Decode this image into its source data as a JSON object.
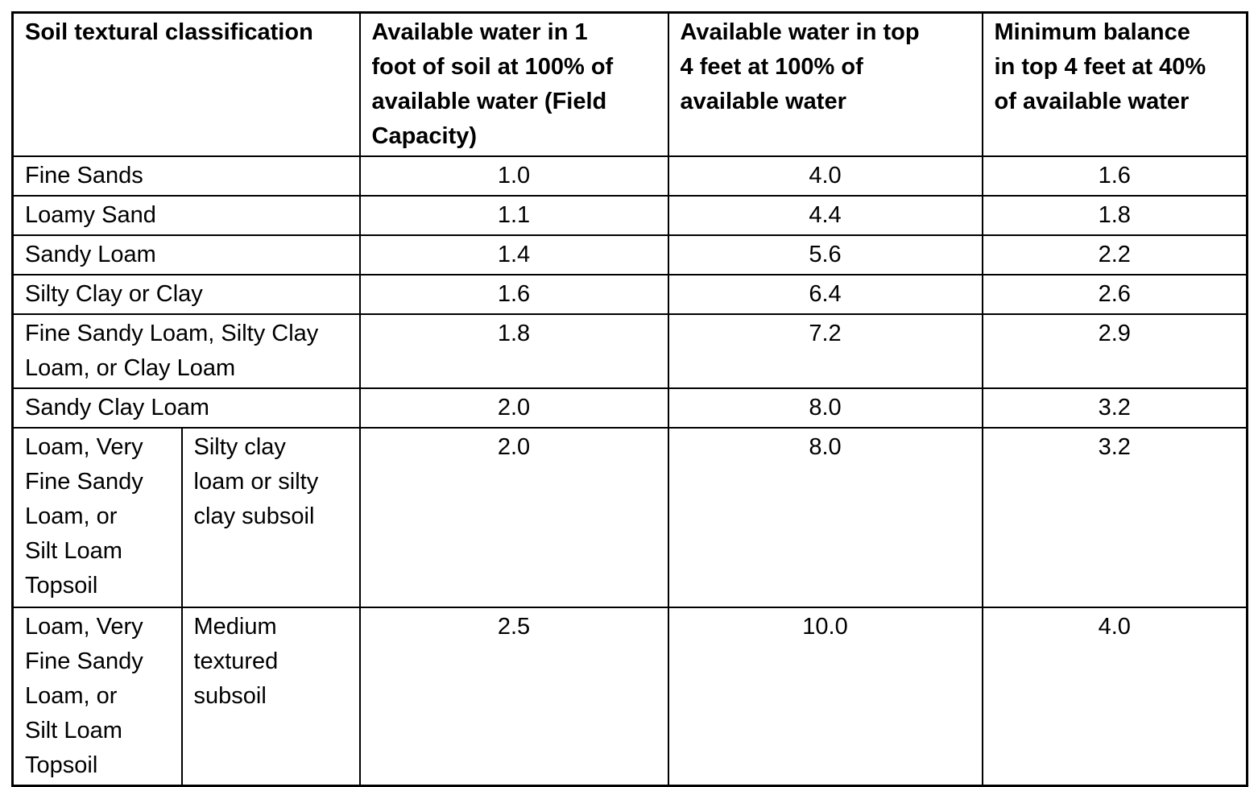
{
  "page": {
    "background_color": "#ffffff",
    "text_color": "#000000",
    "border_color": "#000000"
  },
  "table": {
    "col_headers": {
      "classification": "Soil textural classification",
      "water_1ft": "Available water in 1\nfoot of soil at 100% of\navailable water (Field\nCapacity)",
      "water_4ft": "Available water in top\n4 feet at 100% of\navailable water",
      "min_balance": "Minimum balance\nin top 4 feet at 40%\nof available water"
    },
    "rows": [
      {
        "classification": "Fine Sands",
        "water_1ft": "1.0",
        "water_4ft": "4.0",
        "min_balance": "1.6"
      },
      {
        "classification": "Loamy Sand",
        "water_1ft": "1.1",
        "water_4ft": "4.4",
        "min_balance": "1.8"
      },
      {
        "classification": "Sandy Loam",
        "water_1ft": "1.4",
        "water_4ft": "5.6",
        "min_balance": "2.2"
      },
      {
        "classification": "Silty Clay or Clay",
        "water_1ft": "1.6",
        "water_4ft": "6.4",
        "min_balance": "2.6"
      },
      {
        "classification": "Fine Sandy Loam, Silty Clay\nLoam, or Clay Loam",
        "water_1ft": "1.8",
        "water_4ft": "7.2",
        "min_balance": "2.9"
      },
      {
        "classification": "Sandy Clay Loam",
        "water_1ft": "2.0",
        "water_4ft": "8.0",
        "min_balance": "3.2"
      },
      {
        "topsoil": "Loam, Very\nFine Sandy\nLoam, or\nSilt Loam\nTopsoil",
        "subsoil": "Silty clay\nloam or silty\nclay subsoil",
        "water_1ft": "2.0",
        "water_4ft": "8.0",
        "min_balance": "3.2"
      },
      {
        "topsoil": "Loam, Very\nFine Sandy\nLoam, or\nSilt Loam\nTopsoil",
        "subsoil": "Medium\ntextured\nsubsoil",
        "water_1ft": "2.5",
        "water_4ft": "10.0",
        "min_balance": "4.0"
      }
    ]
  }
}
